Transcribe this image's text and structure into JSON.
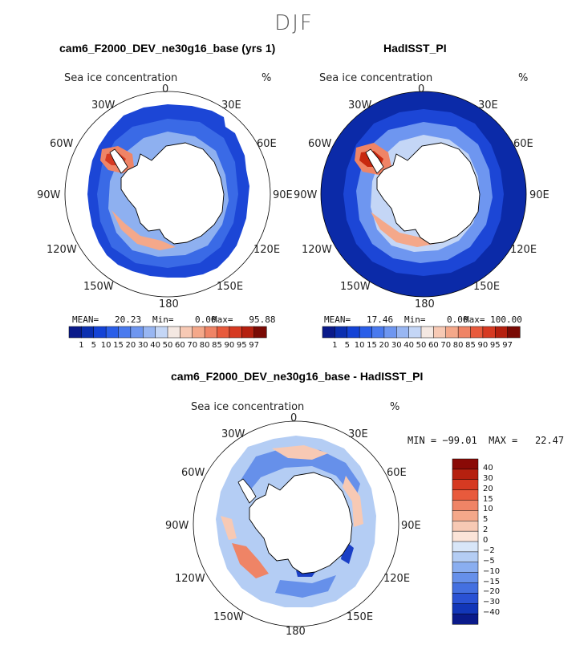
{
  "figure": {
    "season": "DJF"
  },
  "panels": {
    "model": {
      "title": "cam6_F2000_DEV_ne30g16_base (yrs 1)",
      "variable": "Sea ice concentration",
      "units": "%",
      "mean_text": "MEAN=   20.23",
      "min_text": "Min=    0.00",
      "max_text": "Max=   95.88",
      "lon_labels": [
        "0",
        "30E",
        "60E",
        "90E",
        "120E",
        "150E",
        "180",
        "150W",
        "120W",
        "90W",
        "60W",
        "30W"
      ]
    },
    "obs": {
      "title": "HadISST_PI",
      "variable": "Sea ice concentration",
      "units": "%",
      "mean_text": "MEAN=   17.46",
      "min_text": "Min=    0.00",
      "max_text": "Max= 100.00",
      "lon_labels": [
        "0",
        "30E",
        "60E",
        "90E",
        "120E",
        "150E",
        "180",
        "150W",
        "120W",
        "90W",
        "60W",
        "30W"
      ]
    },
    "diff": {
      "title": "cam6_F2000_DEV_ne30g16_base - HadISST_PI",
      "variable": "Sea ice concentration",
      "units": "%",
      "minmax_text": "MIN = −99.01  MAX =   22.47",
      "lon_labels": [
        "0",
        "30E",
        "60E",
        "90E",
        "120E",
        "150E",
        "180",
        "150W",
        "120W",
        "90W",
        "60W",
        "30W"
      ]
    }
  },
  "colorbars": {
    "abs": {
      "ticks": [
        "1",
        "5",
        "10",
        "15",
        "20",
        "30",
        "40",
        "50",
        "60",
        "70",
        "80",
        "85",
        "90",
        "95",
        "97"
      ],
      "colors": [
        "#0a1a8a",
        "#0b2fb0",
        "#1443d6",
        "#2a5ee8",
        "#4a7aee",
        "#6e96f0",
        "#98b6f2",
        "#c4d6f6",
        "#f4e8e2",
        "#f7c9b4",
        "#f4a88a",
        "#ef8466",
        "#e85a3c",
        "#d63a22",
        "#b5200f",
        "#7a0a04"
      ]
    },
    "diff": {
      "ticks": [
        "40",
        "30",
        "20",
        "15",
        "10",
        "5",
        "2",
        "0",
        "−2",
        "−5",
        "−10",
        "−15",
        "−20",
        "−30",
        "−40"
      ],
      "colors": [
        "#8a0a06",
        "#b5200f",
        "#d63a22",
        "#e85a3c",
        "#ef8466",
        "#f4a88a",
        "#f7c9b4",
        "#fbe4d8",
        "#d8e6f8",
        "#b4cdf4",
        "#8aaef0",
        "#6690ea",
        "#4470e0",
        "#2a52d4",
        "#1236b8",
        "#0a1a8a"
      ]
    }
  },
  "map_colors": {
    "ocean_open": "#ffffff",
    "land_outline": "#000000",
    "ice_dense": "#0b2fb0",
    "ice_mid": "#3a6ae6",
    "ice_light": "#8eb0f0",
    "ice_pale": "#c8daf6",
    "warm_light": "#f7c9b4",
    "warm_mid": "#ef8466",
    "warm_strong": "#c8280f",
    "diff_neg_light": "#b4cdf4",
    "diff_neg_mid": "#6690ea",
    "diff_neg_strong": "#1a3fc6",
    "diff_pos_light": "#f7c9b4",
    "diff_pos_mid": "#ef8466"
  }
}
